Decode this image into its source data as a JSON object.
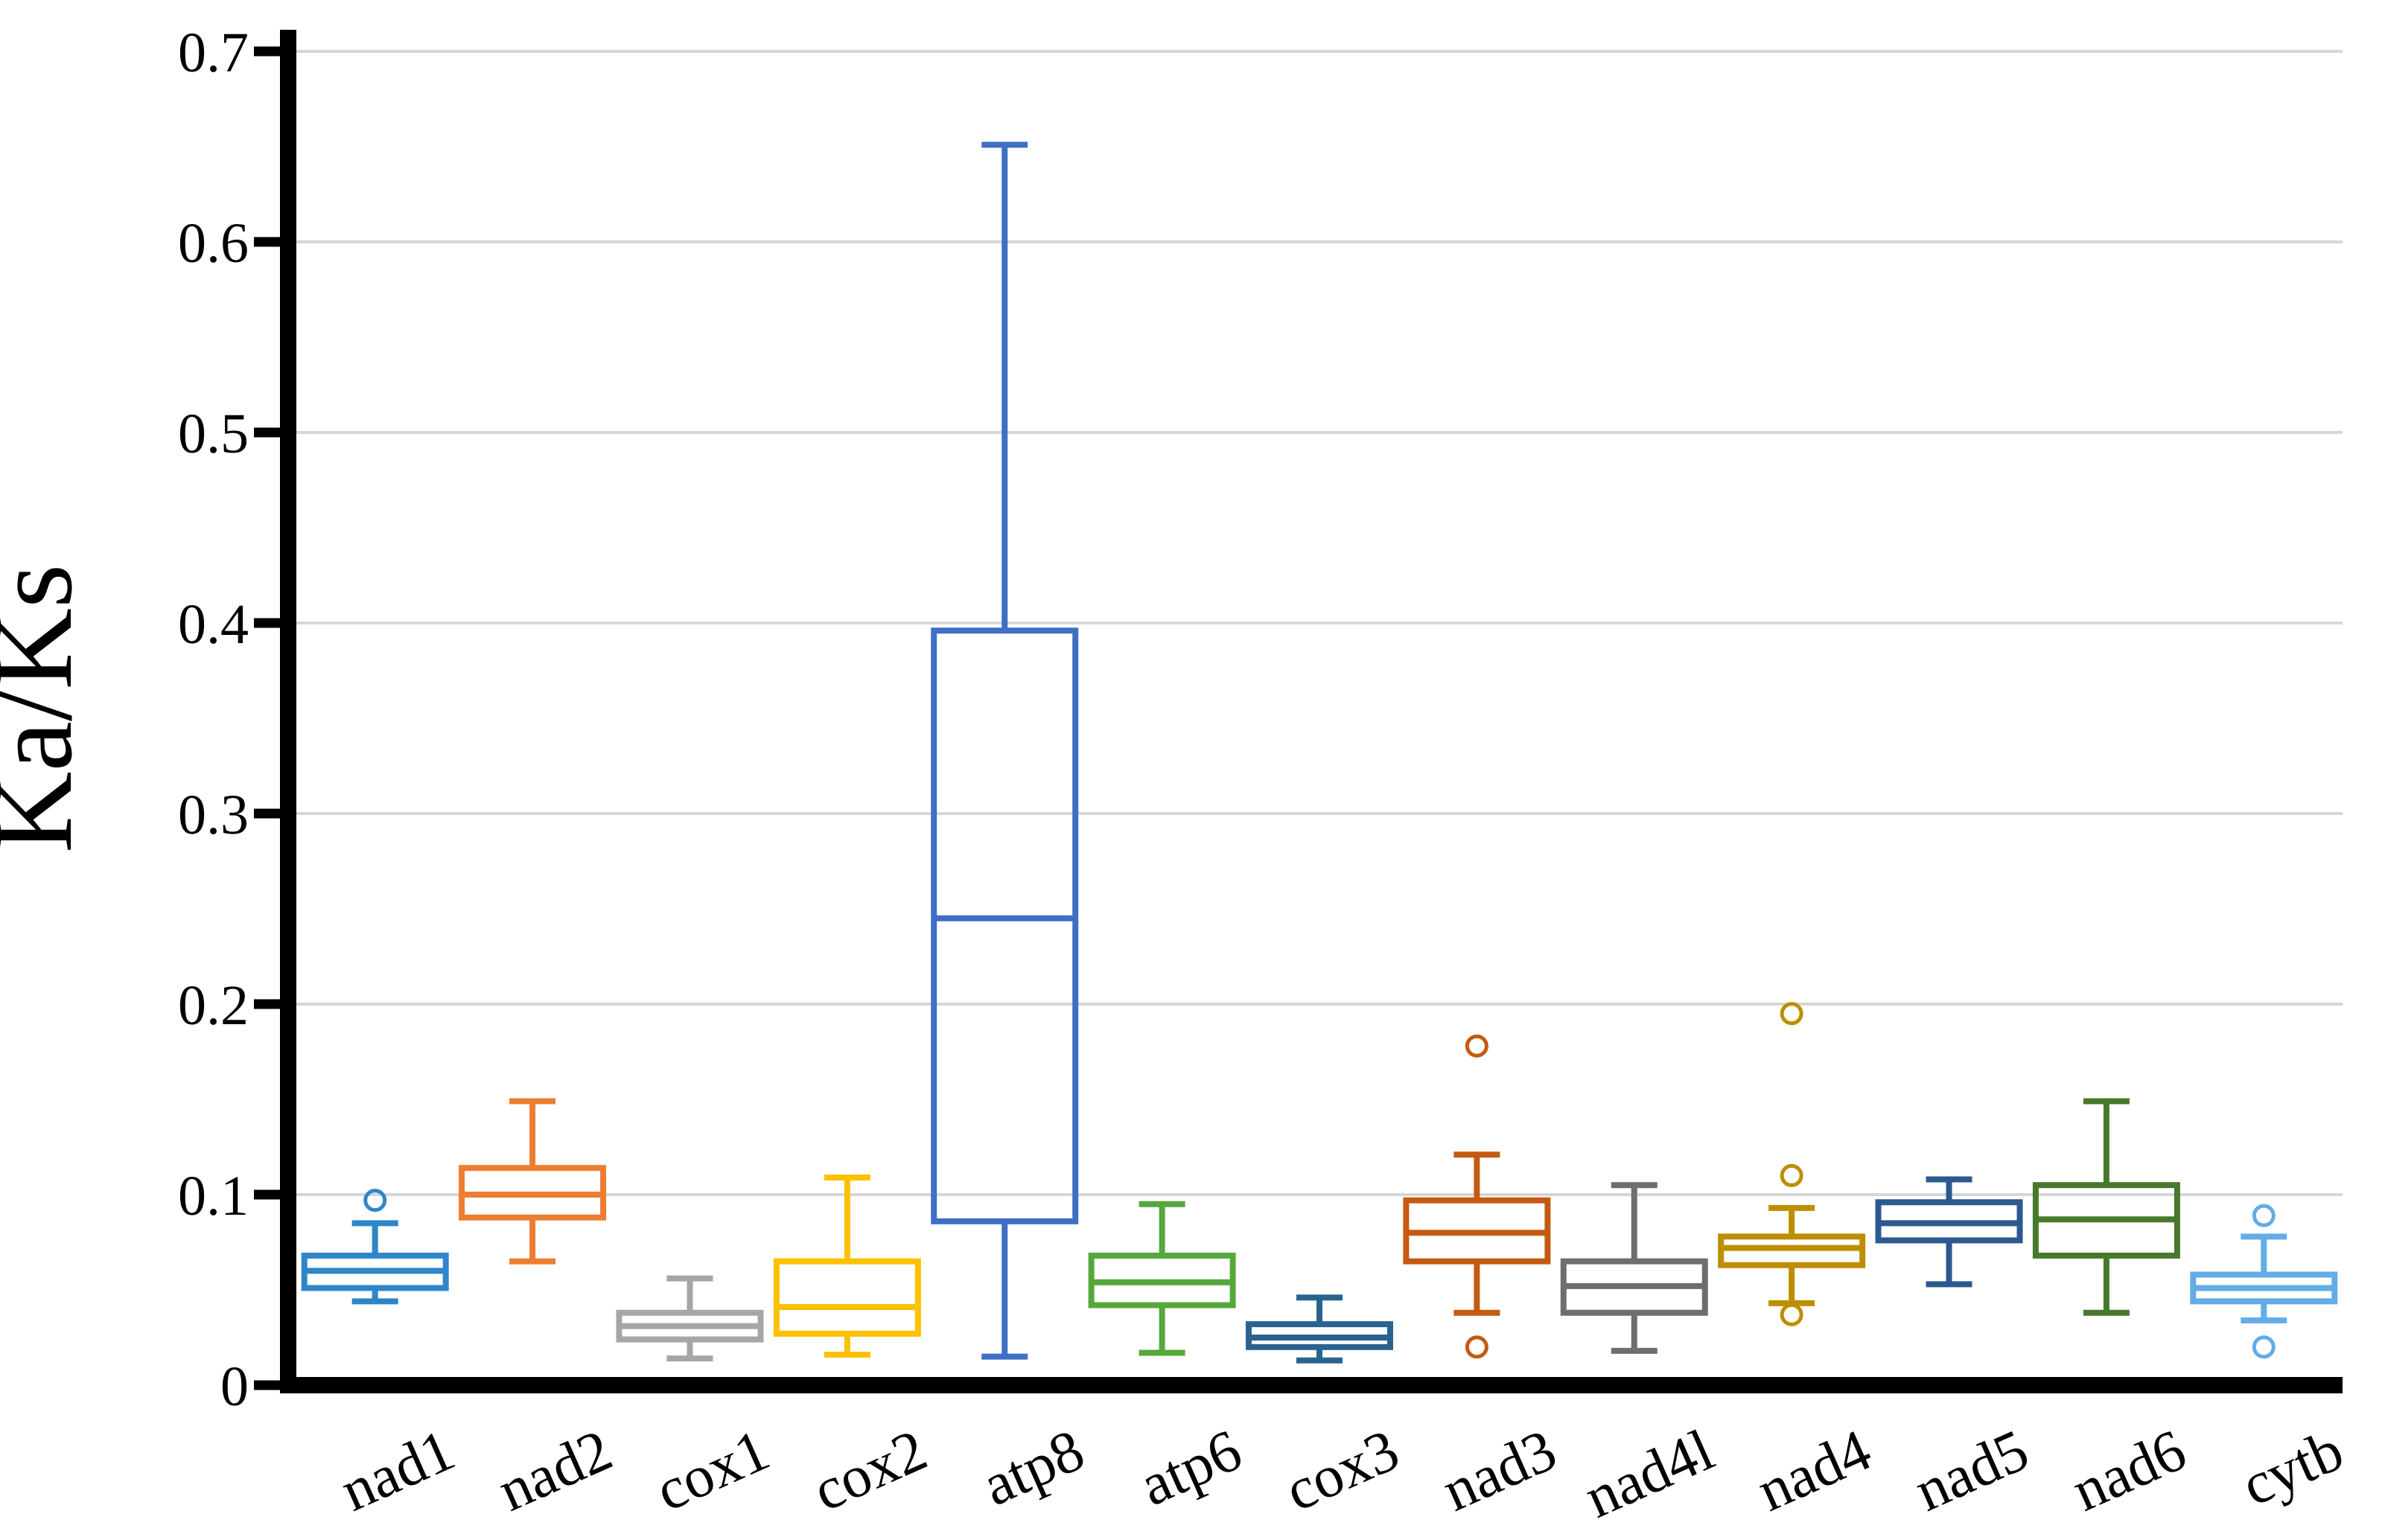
{
  "chart_data": {
    "type": "box",
    "title": "",
    "ylabel": "Ka/Ks",
    "xlabel": "",
    "ylim": [
      0,
      0.7
    ],
    "yticks": [
      "0",
      "0.1",
      "0.2",
      "0.3",
      "0.4",
      "0.5",
      "0.6",
      "0.7"
    ],
    "ytick_values": [
      0,
      0.1,
      0.2,
      0.3,
      0.4,
      0.5,
      0.6,
      0.7
    ],
    "grid": "horizontal",
    "legend": "none",
    "axis_color": "#000000",
    "grid_color": "#D6D6D6",
    "background_color": "#FFFFFF",
    "categories": [
      "nad1",
      "nad2",
      "cox1",
      "cox2",
      "atp8",
      "atp6",
      "cox3",
      "nad3",
      "nad4l",
      "nad4",
      "nad5",
      "nad6",
      "cytb"
    ],
    "series": [
      {
        "name": "nad1",
        "color": "#2E86C8",
        "whisker_low": 0.044,
        "q1": 0.051,
        "median": 0.06,
        "q3": 0.068,
        "whisker_high": 0.085,
        "outliers": [
          0.097
        ]
      },
      {
        "name": "nad2",
        "color": "#ED7D31",
        "whisker_low": 0.065,
        "q1": 0.088,
        "median": 0.1,
        "q3": 0.114,
        "whisker_high": 0.149,
        "outliers": []
      },
      {
        "name": "cox1",
        "color": "#A6A6A6",
        "whisker_low": 0.014,
        "q1": 0.024,
        "median": 0.031,
        "q3": 0.038,
        "whisker_high": 0.056,
        "outliers": []
      },
      {
        "name": "cox2",
        "color": "#FFC000",
        "whisker_low": 0.016,
        "q1": 0.027,
        "median": 0.041,
        "q3": 0.065,
        "whisker_high": 0.109,
        "outliers": []
      },
      {
        "name": "atp8",
        "color": "#3F6FC5",
        "whisker_low": 0.015,
        "q1": 0.086,
        "median": 0.245,
        "q3": 0.396,
        "whisker_high": 0.651,
        "outliers": []
      },
      {
        "name": "atp6",
        "color": "#56A73C",
        "whisker_low": 0.017,
        "q1": 0.042,
        "median": 0.054,
        "q3": 0.068,
        "whisker_high": 0.095,
        "outliers": []
      },
      {
        "name": "cox3",
        "color": "#2A6390",
        "whisker_low": 0.013,
        "q1": 0.02,
        "median": 0.025,
        "q3": 0.032,
        "whisker_high": 0.046,
        "outliers": []
      },
      {
        "name": "nad3",
        "color": "#C45A11",
        "whisker_low": 0.038,
        "q1": 0.065,
        "median": 0.08,
        "q3": 0.097,
        "whisker_high": 0.121,
        "outliers": [
          0.178,
          0.02
        ]
      },
      {
        "name": "nad4l",
        "color": "#6E6E6E",
        "whisker_low": 0.018,
        "q1": 0.038,
        "median": 0.052,
        "q3": 0.065,
        "whisker_high": 0.105,
        "outliers": []
      },
      {
        "name": "nad4",
        "color": "#BD8E00",
        "whisker_low": 0.043,
        "q1": 0.063,
        "median": 0.072,
        "q3": 0.078,
        "whisker_high": 0.093,
        "outliers": [
          0.195,
          0.11,
          0.037
        ]
      },
      {
        "name": "nad5",
        "color": "#2B5990",
        "whisker_low": 0.053,
        "q1": 0.076,
        "median": 0.085,
        "q3": 0.096,
        "whisker_high": 0.108,
        "outliers": []
      },
      {
        "name": "nad6",
        "color": "#47792C",
        "whisker_low": 0.038,
        "q1": 0.068,
        "median": 0.087,
        "q3": 0.105,
        "whisker_high": 0.149,
        "outliers": []
      },
      {
        "name": "cytb",
        "color": "#63ACE5",
        "whisker_low": 0.034,
        "q1": 0.044,
        "median": 0.051,
        "q3": 0.058,
        "whisker_high": 0.078,
        "outliers": [
          0.089,
          0.02
        ]
      }
    ]
  }
}
